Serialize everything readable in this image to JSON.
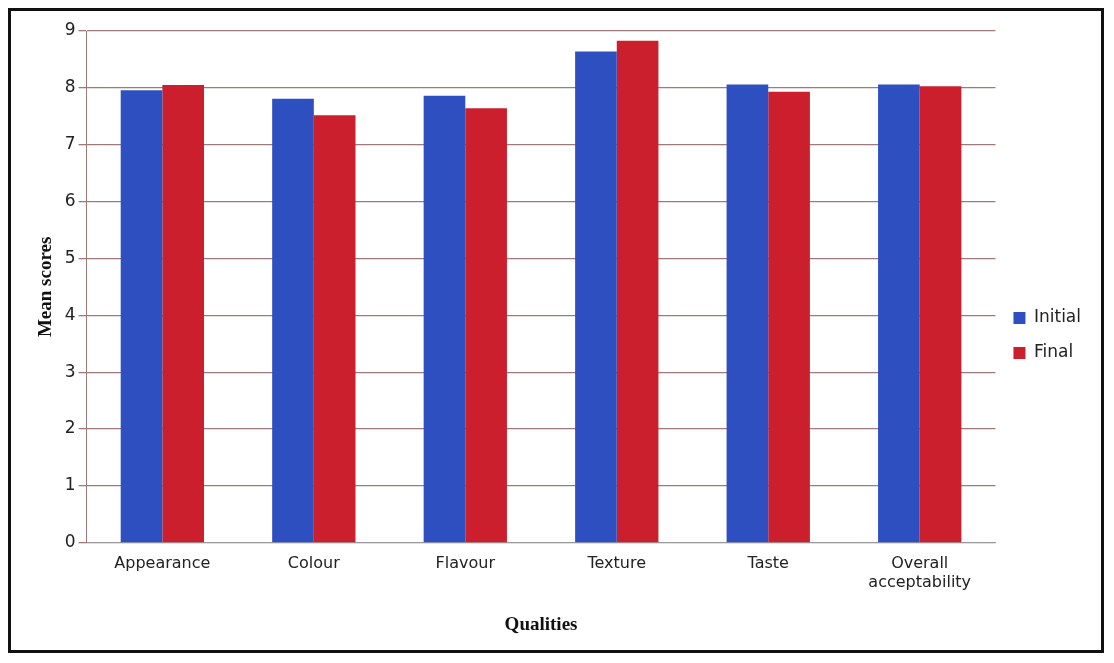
{
  "chart_data": {
    "type": "bar",
    "xlabel": "Qualities",
    "ylabel": "Mean scores",
    "categories": [
      "Appearance",
      "Colour",
      "Flavour",
      "Texture",
      "Taste",
      "Overall acceptability"
    ],
    "series": [
      {
        "name": "Initial",
        "color": "#2e4fbf",
        "values": [
          7.96,
          7.81,
          7.86,
          8.64,
          8.06,
          8.06
        ]
      },
      {
        "name": "Final",
        "color": "#cc1f2e",
        "values": [
          8.05,
          7.52,
          7.64,
          8.83,
          7.93,
          8.03
        ]
      }
    ],
    "ylim": [
      0,
      9
    ],
    "yticks": [
      0,
      1,
      2,
      3,
      4,
      5,
      6,
      7,
      8,
      9
    ],
    "grid": "y",
    "legend": "right"
  }
}
